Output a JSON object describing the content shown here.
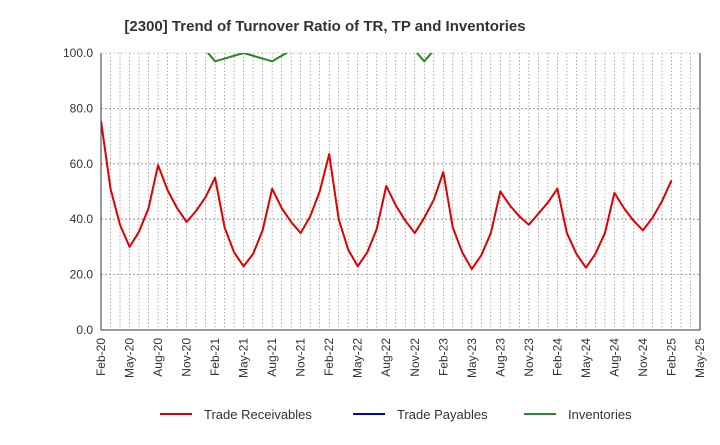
{
  "chart_data": {
    "type": "line",
    "title": "[2300]  Trend of Turnover Ratio of TR, TP and Inventories",
    "xlabel": "",
    "ylabel": "",
    "ylim": [
      0,
      100
    ],
    "yticks": [
      "0.0",
      "20.0",
      "40.0",
      "60.0",
      "80.0",
      "100.0"
    ],
    "xticks": [
      "Feb-20",
      "May-20",
      "Aug-20",
      "Nov-20",
      "Feb-21",
      "May-21",
      "Aug-21",
      "Nov-21",
      "Feb-22",
      "May-22",
      "Aug-22",
      "Nov-22",
      "Feb-23",
      "May-23",
      "Aug-23",
      "Nov-23",
      "Feb-24",
      "May-24",
      "Aug-24",
      "Nov-24",
      "Feb-25",
      "May-25"
    ],
    "x_start": "Feb-20",
    "x_end": "May-25",
    "grid": true,
    "legend_position": "bottom",
    "series": [
      {
        "name": "Trade Receivables",
        "color": "#e00000",
        "values": [
          75.5,
          51,
          38,
          30,
          35.5,
          44,
          59.5,
          50.5,
          44,
          39,
          43,
          48,
          55,
          37,
          28,
          23,
          27.5,
          36,
          51,
          44,
          39,
          35,
          41,
          50,
          63.5,
          40,
          29,
          23,
          28,
          36.5,
          52,
          45,
          39.5,
          35,
          40.5,
          47,
          57,
          37,
          28,
          22,
          27,
          35,
          50,
          45,
          41,
          38,
          42,
          46,
          51,
          35,
          27.5,
          22.5,
          27.5,
          35,
          49.5,
          44,
          39.5,
          36,
          40.5,
          46.5,
          54
        ]
      },
      {
        "name": "Trade Payables",
        "color": "#0000cc",
        "values": []
      },
      {
        "name": "Inventories",
        "color": "#228b22",
        "values": [
          null,
          null,
          null,
          null,
          null,
          null,
          null,
          null,
          null,
          null,
          null,
          101,
          97,
          98,
          99,
          100,
          99,
          98,
          97,
          99,
          101,
          null,
          null,
          null,
          null,
          null,
          null,
          null,
          null,
          null,
          null,
          null,
          null,
          101,
          97,
          101
        ]
      }
    ]
  }
}
